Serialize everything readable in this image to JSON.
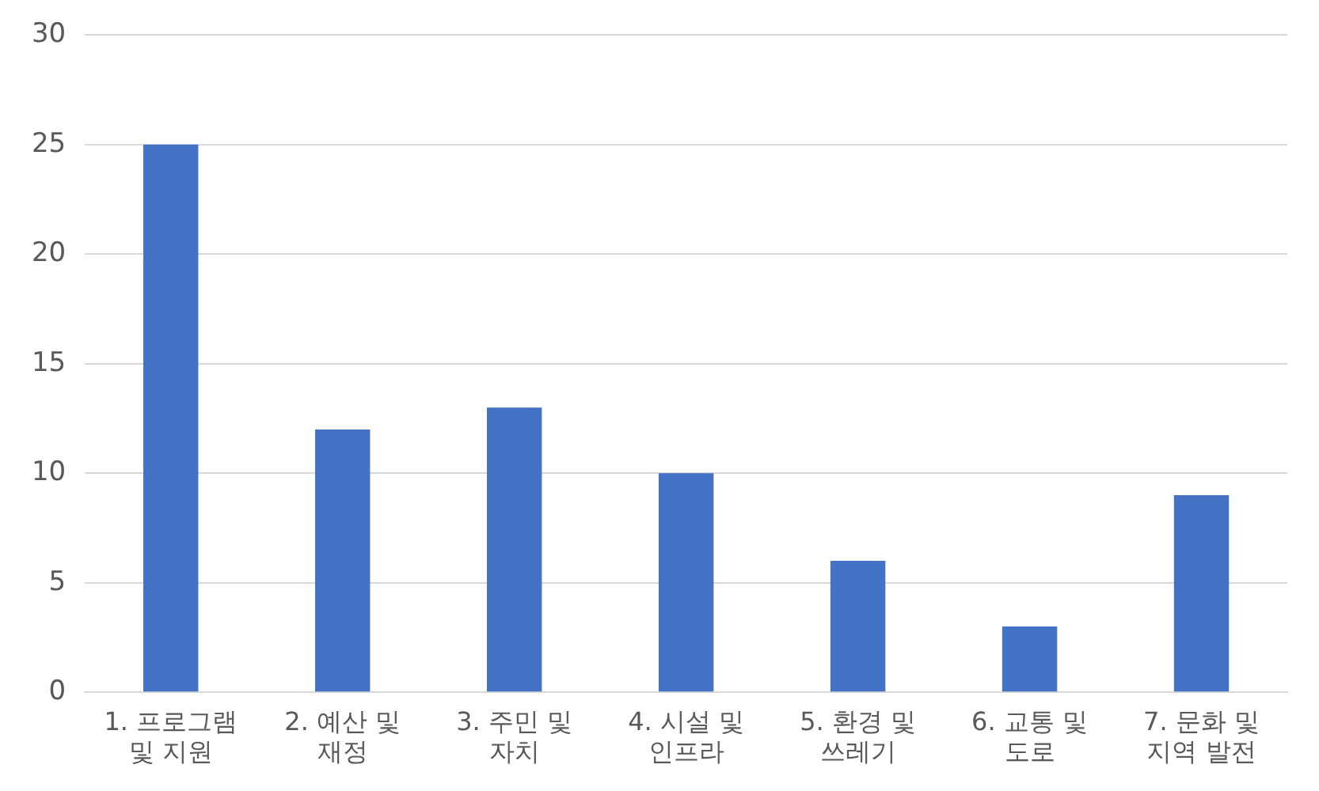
{
  "chart_data": {
    "type": "bar",
    "categories": [
      "1. 프로그램 및 지원",
      "2. 예산 및 재정",
      "3. 주민 및 자치",
      "4. 시설 및 인프라",
      "5. 환경 및 쓰레기",
      "6. 교통 및 도로",
      "7. 문화 및 지역 발전"
    ],
    "values": [
      25,
      12,
      13,
      10,
      6,
      3,
      9
    ],
    "color": "#4472c4",
    "ylim": [
      0,
      30
    ],
    "yticks": [
      0,
      5,
      10,
      15,
      20,
      25,
      30
    ],
    "grid": "y",
    "legend": false
  }
}
